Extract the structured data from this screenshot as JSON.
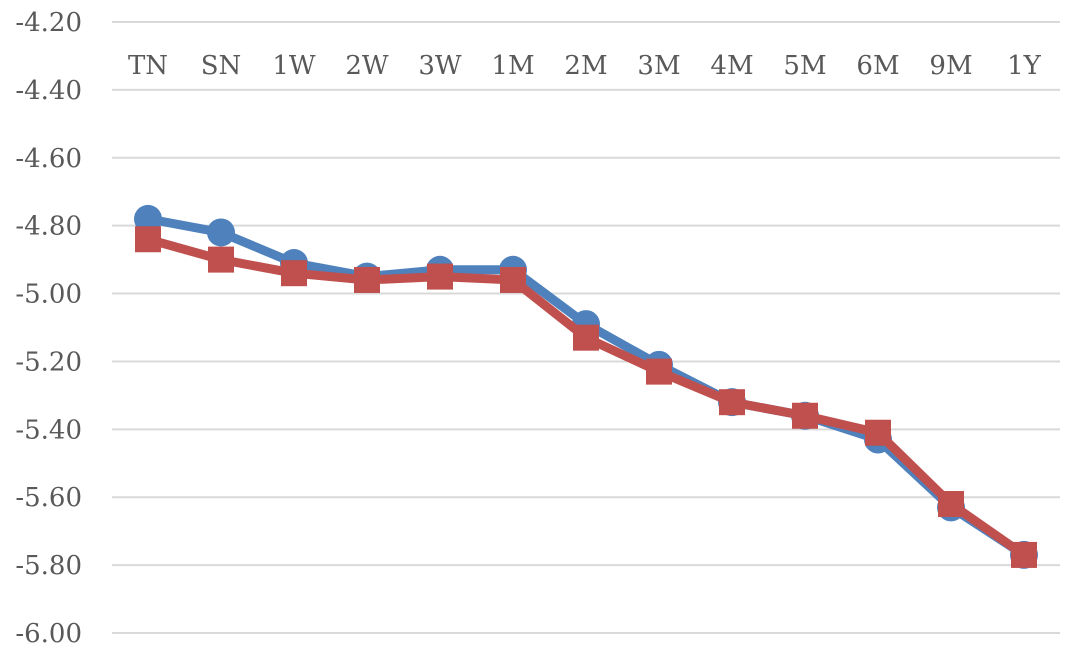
{
  "chart_data": {
    "type": "line",
    "title": "",
    "xlabel": "",
    "ylabel": "",
    "categories": [
      "TN",
      "SN",
      "1W",
      "2W",
      "3W",
      "1M",
      "2M",
      "3M",
      "4M",
      "5M",
      "6M",
      "9M",
      "1Y"
    ],
    "ylim": [
      -6.0,
      -4.2
    ],
    "yticks": [
      -4.2,
      -4.4,
      -4.6,
      -4.8,
      -5.0,
      -5.2,
      -5.4,
      -5.6,
      -5.8,
      -6.0
    ],
    "ytick_labels": [
      "-4.20",
      "-4.40",
      "-4.60",
      "-4.80",
      "-5.00",
      "-5.20",
      "-5.40",
      "-5.60",
      "-5.80",
      "-6.00"
    ],
    "x_axis_position": "top",
    "grid": true,
    "legend": "none",
    "series": [
      {
        "color": "#4f81bd",
        "marker": "circle",
        "values": [
          -4.78,
          -4.82,
          -4.91,
          -4.95,
          -4.93,
          -4.93,
          -5.09,
          -5.21,
          -5.32,
          -5.36,
          -5.43,
          -5.63,
          -5.77
        ]
      },
      {
        "color": "#c0504d",
        "marker": "square",
        "values": [
          -4.84,
          -4.9,
          -4.94,
          -4.96,
          -4.95,
          -4.96,
          -5.13,
          -5.23,
          -5.32,
          -5.36,
          -5.41,
          -5.62,
          -5.77
        ]
      }
    ]
  }
}
